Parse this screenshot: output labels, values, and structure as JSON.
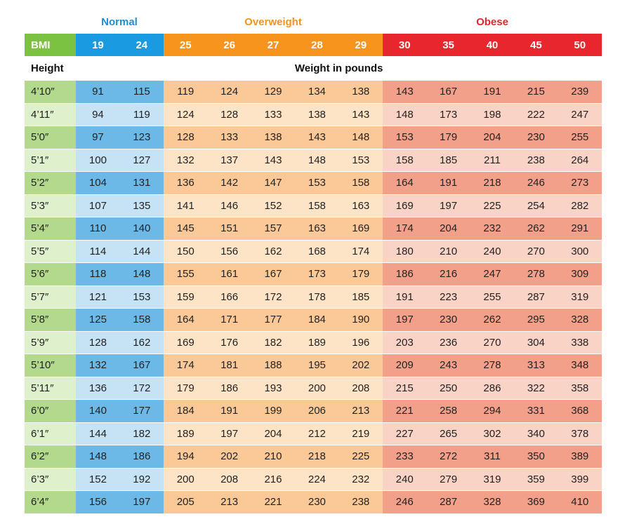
{
  "colors": {
    "normal": "#1a9ae0",
    "overweight": "#f7941d",
    "obese": "#e8262d",
    "bmi_label": "#7cc242"
  },
  "chart_data": {
    "type": "table",
    "categories": {
      "normal": "Normal",
      "overweight": "Overweight",
      "obese": "Obese"
    },
    "bmi_label": "BMI",
    "bmi_values": [
      19,
      24,
      25,
      26,
      27,
      28,
      29,
      30,
      35,
      40,
      45,
      50
    ],
    "bmi_groups": [
      "normal",
      "normal",
      "overweight",
      "overweight",
      "overweight",
      "overweight",
      "overweight",
      "obese",
      "obese",
      "obese",
      "obese",
      "obese"
    ],
    "height_label": "Height",
    "weight_label": "Weight in pounds",
    "rows": [
      {
        "height": "4’10″",
        "weights": [
          91,
          115,
          119,
          124,
          129,
          134,
          138,
          143,
          167,
          191,
          215,
          239
        ]
      },
      {
        "height": "4’11″",
        "weights": [
          94,
          119,
          124,
          128,
          133,
          138,
          143,
          148,
          173,
          198,
          222,
          247
        ]
      },
      {
        "height": "5’0″",
        "weights": [
          97,
          123,
          128,
          133,
          138,
          143,
          148,
          153,
          179,
          204,
          230,
          255
        ]
      },
      {
        "height": "5’1″",
        "weights": [
          100,
          127,
          132,
          137,
          143,
          148,
          153,
          158,
          185,
          211,
          238,
          264
        ]
      },
      {
        "height": "5’2″",
        "weights": [
          104,
          131,
          136,
          142,
          147,
          153,
          158,
          164,
          191,
          218,
          246,
          273
        ]
      },
      {
        "height": "5’3″",
        "weights": [
          107,
          135,
          141,
          146,
          152,
          158,
          163,
          169,
          197,
          225,
          254,
          282
        ]
      },
      {
        "height": "5’4″",
        "weights": [
          110,
          140,
          145,
          151,
          157,
          163,
          169,
          174,
          204,
          232,
          262,
          291
        ]
      },
      {
        "height": "5’5″",
        "weights": [
          114,
          144,
          150,
          156,
          162,
          168,
          174,
          180,
          210,
          240,
          270,
          300
        ]
      },
      {
        "height": "5’6″",
        "weights": [
          118,
          148,
          155,
          161,
          167,
          173,
          179,
          186,
          216,
          247,
          278,
          309
        ]
      },
      {
        "height": "5’7″",
        "weights": [
          121,
          153,
          159,
          166,
          172,
          178,
          185,
          191,
          223,
          255,
          287,
          319
        ]
      },
      {
        "height": "5’8″",
        "weights": [
          125,
          158,
          164,
          171,
          177,
          184,
          190,
          197,
          230,
          262,
          295,
          328
        ]
      },
      {
        "height": "5’9″",
        "weights": [
          128,
          162,
          169,
          176,
          182,
          189,
          196,
          203,
          236,
          270,
          304,
          338
        ]
      },
      {
        "height": "5’10″",
        "weights": [
          132,
          167,
          174,
          181,
          188,
          195,
          202,
          209,
          243,
          278,
          313,
          348
        ]
      },
      {
        "height": "5’11″",
        "weights": [
          136,
          172,
          179,
          186,
          193,
          200,
          208,
          215,
          250,
          286,
          322,
          358
        ]
      },
      {
        "height": "6’0″",
        "weights": [
          140,
          177,
          184,
          191,
          199,
          206,
          213,
          221,
          258,
          294,
          331,
          368
        ]
      },
      {
        "height": "6’1″",
        "weights": [
          144,
          182,
          189,
          197,
          204,
          212,
          219,
          227,
          265,
          302,
          340,
          378
        ]
      },
      {
        "height": "6’2″",
        "weights": [
          148,
          186,
          194,
          202,
          210,
          218,
          225,
          233,
          272,
          311,
          350,
          389
        ]
      },
      {
        "height": "6’3″",
        "weights": [
          152,
          192,
          200,
          208,
          216,
          224,
          232,
          240,
          279,
          319,
          359,
          399
        ]
      },
      {
        "height": "6’4″",
        "weights": [
          156,
          197,
          205,
          213,
          221,
          230,
          238,
          246,
          287,
          328,
          369,
          410
        ]
      }
    ]
  }
}
